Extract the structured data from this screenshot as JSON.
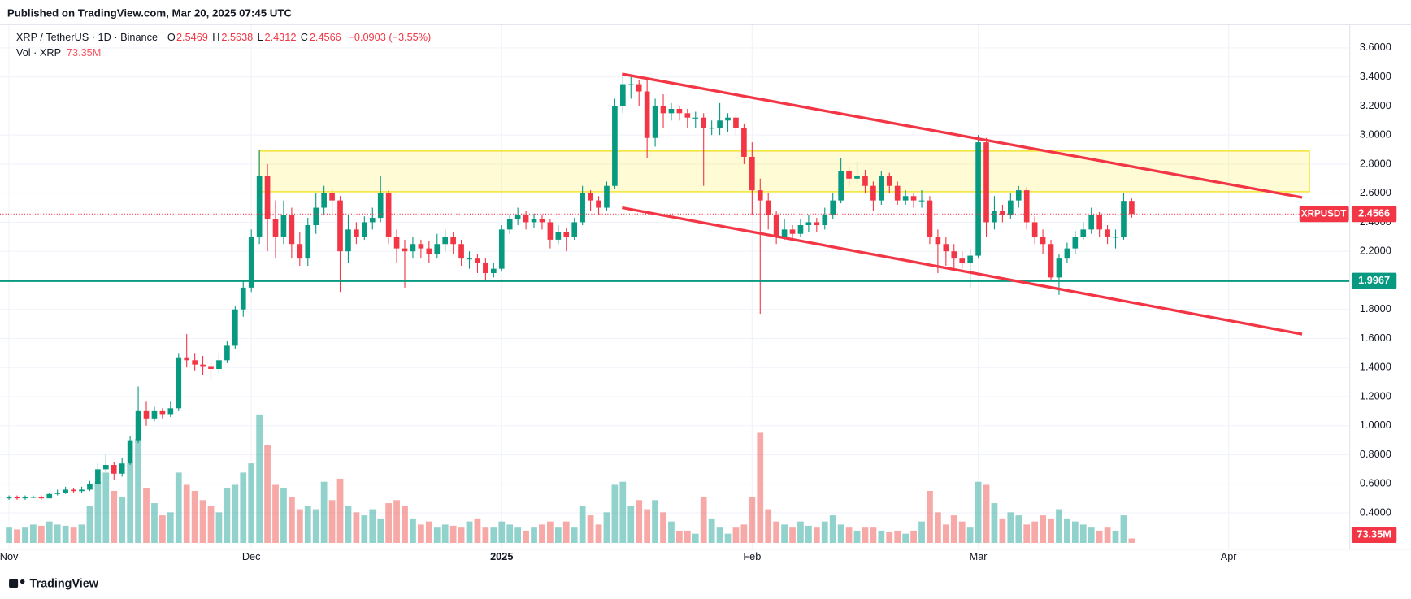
{
  "chart_data": {
    "type": "candlestick",
    "header": "Published on TradingView.com, Mar 20, 2025 07:45 UTC",
    "symbol": "XRP / TetherUS · 1D · Binance",
    "ohlc_letters": [
      "O",
      "H",
      "L",
      "C"
    ],
    "change_label": "−0.0903 (−3.55%)",
    "volume_title": "Vol · XRP",
    "volume_label": "73.35M",
    "ticker": "XRPUSDT",
    "footer": "TradingView",
    "up_color": "#089981",
    "down_color": "#f23645",
    "volume_up_color": "rgba(38,166,154,0.5)",
    "volume_down_color": "rgba(239,83,80,0.5)",
    "xlim": [
      0,
      166
    ],
    "xticks": [
      {
        "value": 0,
        "label": "Nov"
      },
      {
        "value": 30,
        "label": "Dec"
      },
      {
        "value": 61,
        "label": "2025"
      },
      {
        "value": 92,
        "label": "Feb"
      },
      {
        "value": 120,
        "label": "Mar"
      },
      {
        "value": 151,
        "label": "Apr"
      }
    ],
    "ylim": [
      0.15,
      3.76
    ],
    "yticks": [
      {
        "value": 0.4,
        "label": "0.4000"
      },
      {
        "value": 0.6,
        "label": "0.6000"
      },
      {
        "value": 0.8,
        "label": "0.8000"
      },
      {
        "value": 1.0,
        "label": "1.0000"
      },
      {
        "value": 1.2,
        "label": "1.2000"
      },
      {
        "value": 1.4,
        "label": "1.4000"
      },
      {
        "value": 1.6,
        "label": "1.6000"
      },
      {
        "value": 1.8,
        "label": "1.8000"
      },
      {
        "value": 2.0,
        "label": "2.0000"
      },
      {
        "value": 2.2,
        "label": "2.2000"
      },
      {
        "value": 2.4,
        "label": "2.4000"
      },
      {
        "value": 2.6,
        "label": "2.6000"
      },
      {
        "value": 2.8,
        "label": "2.8000"
      },
      {
        "value": 3.0,
        "label": "3.0000"
      },
      {
        "value": 3.2,
        "label": "3.2000"
      },
      {
        "value": 3.4,
        "label": "3.4000"
      },
      {
        "value": 3.6,
        "label": "3.6000"
      }
    ],
    "volume_lim": [
      0,
      3000
    ],
    "grid": true,
    "zone": {
      "x": [
        31,
        161
      ],
      "y": [
        2.61,
        2.89
      ],
      "color": "rgba(255,235,59,0.22)",
      "border": "#f5e642"
    },
    "support": {
      "value": 1.9967,
      "color": "#089981"
    },
    "trendlines": [
      {
        "x": [
          75.9,
          160.1
        ],
        "y": [
          3.42,
          2.57
        ],
        "color": "#f23645"
      },
      {
        "x": [
          75.9,
          160.1
        ],
        "y": [
          2.5,
          1.63
        ],
        "color": "#f23645"
      }
    ],
    "candles": {
      "open": [
        0.5,
        0.51,
        0.5,
        0.51,
        0.51,
        0.5,
        0.53,
        0.54,
        0.56,
        0.55,
        0.56,
        0.6,
        0.7,
        0.73,
        0.67,
        0.74,
        0.9,
        1.1,
        1.05,
        1.1,
        1.08,
        1.12,
        1.47,
        1.45,
        1.42,
        1.41,
        1.39,
        1.45,
        1.55,
        1.8,
        1.95,
        2.3,
        2.72,
        2.42,
        2.3,
        2.45,
        2.25,
        2.15,
        2.38,
        2.5,
        2.6,
        2.55,
        2.2,
        2.35,
        2.3,
        2.4,
        2.43,
        2.6,
        2.3,
        2.22,
        2.2,
        2.25,
        2.22,
        2.18,
        2.25,
        2.3,
        2.25,
        2.15,
        2.15,
        2.12,
        2.05,
        2.08,
        2.35,
        2.42,
        2.45,
        2.4,
        2.42,
        2.4,
        2.28,
        2.33,
        2.3,
        2.4,
        2.6,
        2.55,
        2.5,
        2.65,
        3.2,
        3.35,
        3.35,
        3.3,
        2.98,
        3.2,
        3.15,
        3.18,
        3.15,
        3.12,
        3.12,
        3.05,
        3.05,
        3.1,
        3.12,
        3.05,
        2.85,
        2.62,
        2.55,
        2.45,
        2.3,
        2.35,
        2.32,
        2.38,
        2.4,
        2.38,
        2.45,
        2.55,
        2.75,
        2.7,
        2.72,
        2.65,
        2.55,
        2.72,
        2.65,
        2.55,
        2.58,
        2.55,
        2.55,
        2.3,
        2.25,
        2.2,
        2.15,
        2.12,
        2.17,
        2.95,
        2.4,
        2.48,
        2.45,
        2.55,
        2.62,
        2.4,
        2.3,
        2.25,
        2.02,
        2.15,
        2.22,
        2.3,
        2.35,
        2.45,
        2.35,
        2.3,
        2.3,
        2.5469
      ],
      "high": [
        0.52,
        0.52,
        0.52,
        0.52,
        0.52,
        0.54,
        0.56,
        0.58,
        0.57,
        0.58,
        0.62,
        0.74,
        0.8,
        0.75,
        0.78,
        0.93,
        1.27,
        1.17,
        1.13,
        1.12,
        1.17,
        1.5,
        1.63,
        1.5,
        1.48,
        1.45,
        1.5,
        1.58,
        1.82,
        2.0,
        2.35,
        2.9,
        2.8,
        2.55,
        2.55,
        2.5,
        2.33,
        2.43,
        2.6,
        2.65,
        2.63,
        2.58,
        2.45,
        2.4,
        2.44,
        2.5,
        2.72,
        2.62,
        2.35,
        2.28,
        2.3,
        2.28,
        2.27,
        2.32,
        2.35,
        2.33,
        2.28,
        2.2,
        2.18,
        2.15,
        2.12,
        2.38,
        2.45,
        2.5,
        2.48,
        2.46,
        2.45,
        2.42,
        2.38,
        2.36,
        2.43,
        2.65,
        2.62,
        2.58,
        2.68,
        3.25,
        3.4,
        3.4,
        3.38,
        3.38,
        3.25,
        3.28,
        3.22,
        3.2,
        3.18,
        3.16,
        3.15,
        3.1,
        3.22,
        3.15,
        3.14,
        3.08,
        2.95,
        2.7,
        2.6,
        2.48,
        2.42,
        2.38,
        2.42,
        2.45,
        2.43,
        2.5,
        2.6,
        2.84,
        2.78,
        2.82,
        2.76,
        2.68,
        2.75,
        2.74,
        2.68,
        2.62,
        2.6,
        2.62,
        2.58,
        2.35,
        2.3,
        2.25,
        2.2,
        2.22,
        3.0,
        2.98,
        2.58,
        2.52,
        2.6,
        2.65,
        2.64,
        2.44,
        2.35,
        2.28,
        2.18,
        2.26,
        2.34,
        2.4,
        2.5,
        2.47,
        2.38,
        2.35,
        2.6,
        2.5638
      ],
      "low": [
        0.49,
        0.49,
        0.49,
        0.5,
        0.49,
        0.5,
        0.52,
        0.53,
        0.54,
        0.54,
        0.55,
        0.59,
        0.68,
        0.63,
        0.65,
        0.73,
        0.88,
        1.0,
        1.03,
        1.05,
        1.06,
        1.1,
        1.4,
        1.38,
        1.35,
        1.31,
        1.36,
        1.43,
        1.53,
        1.75,
        1.92,
        2.25,
        2.2,
        2.15,
        2.25,
        2.15,
        2.1,
        2.1,
        2.32,
        2.45,
        2.45,
        1.92,
        2.12,
        2.25,
        2.28,
        2.35,
        2.4,
        2.25,
        2.12,
        1.95,
        2.15,
        2.15,
        2.12,
        2.15,
        2.2,
        2.18,
        2.1,
        2.08,
        2.05,
        2.0,
        2.02,
        2.06,
        2.32,
        2.38,
        2.35,
        2.36,
        2.35,
        2.22,
        2.25,
        2.2,
        2.28,
        2.38,
        2.48,
        2.45,
        2.48,
        2.63,
        3.15,
        3.25,
        3.2,
        2.84,
        2.92,
        3.05,
        3.1,
        3.1,
        3.05,
        3.05,
        2.65,
        3.0,
        3.0,
        3.02,
        3.0,
        2.8,
        2.45,
        1.77,
        2.35,
        2.25,
        2.28,
        2.28,
        2.3,
        2.33,
        2.33,
        2.35,
        2.42,
        2.53,
        2.65,
        2.67,
        2.6,
        2.48,
        2.52,
        2.6,
        2.52,
        2.52,
        2.5,
        2.5,
        2.25,
        2.05,
        2.1,
        2.08,
        2.08,
        1.95,
        2.15,
        2.3,
        2.35,
        2.4,
        2.42,
        2.5,
        2.35,
        2.25,
        2.18,
        2.0,
        1.9,
        2.12,
        2.18,
        2.28,
        2.32,
        2.3,
        2.25,
        2.22,
        2.28,
        2.4312
      ],
      "close": [
        0.51,
        0.5,
        0.51,
        0.51,
        0.5,
        0.53,
        0.54,
        0.56,
        0.55,
        0.56,
        0.6,
        0.7,
        0.73,
        0.67,
        0.74,
        0.9,
        1.1,
        1.05,
        1.1,
        1.08,
        1.12,
        1.47,
        1.45,
        1.42,
        1.41,
        1.39,
        1.45,
        1.55,
        1.8,
        1.95,
        2.3,
        2.72,
        2.42,
        2.3,
        2.45,
        2.25,
        2.15,
        2.38,
        2.5,
        2.6,
        2.55,
        2.2,
        2.35,
        2.3,
        2.4,
        2.43,
        2.6,
        2.3,
        2.22,
        2.2,
        2.25,
        2.22,
        2.18,
        2.25,
        2.3,
        2.25,
        2.15,
        2.15,
        2.12,
        2.05,
        2.08,
        2.35,
        2.42,
        2.45,
        2.4,
        2.42,
        2.4,
        2.28,
        2.33,
        2.3,
        2.4,
        2.6,
        2.55,
        2.5,
        2.65,
        3.2,
        3.35,
        3.35,
        3.3,
        2.98,
        3.2,
        3.15,
        3.18,
        3.15,
        3.12,
        3.12,
        3.05,
        3.05,
        3.1,
        3.12,
        3.05,
        2.85,
        2.62,
        2.55,
        2.45,
        2.3,
        2.35,
        2.32,
        2.38,
        2.4,
        2.38,
        2.45,
        2.55,
        2.75,
        2.7,
        2.72,
        2.65,
        2.55,
        2.72,
        2.65,
        2.55,
        2.58,
        2.55,
        2.55,
        2.3,
        2.25,
        2.2,
        2.15,
        2.12,
        2.17,
        2.95,
        2.4,
        2.48,
        2.45,
        2.55,
        2.62,
        2.4,
        2.3,
        2.25,
        2.02,
        2.15,
        2.22,
        2.3,
        2.35,
        2.45,
        2.35,
        2.3,
        2.3,
        2.5469,
        2.4566
      ],
      "volume": [
        250,
        220,
        250,
        300,
        280,
        350,
        300,
        280,
        250,
        300,
        600,
        1000,
        1150,
        850,
        750,
        1300,
        1700,
        900,
        650,
        450,
        500,
        1150,
        950,
        850,
        700,
        600,
        500,
        900,
        950,
        1150,
        1300,
        2100,
        1600,
        950,
        900,
        750,
        550,
        600,
        550,
        1000,
        700,
        1050,
        600,
        500,
        450,
        550,
        400,
        650,
        700,
        600,
        400,
        300,
        350,
        250,
        300,
        280,
        250,
        350,
        400,
        250,
        250,
        350,
        300,
        250,
        200,
        250,
        300,
        350,
        250,
        350,
        250,
        600,
        450,
        300,
        500,
        950,
        1000,
        600,
        700,
        550,
        700,
        500,
        350,
        200,
        200,
        150,
        750,
        400,
        250,
        150,
        250,
        300,
        750,
        1800,
        550,
        350,
        300,
        250,
        350,
        280,
        250,
        350,
        450,
        300,
        250,
        200,
        250,
        250,
        200,
        180,
        200,
        150,
        200,
        350,
        850,
        500,
        300,
        450,
        350,
        250,
        1000,
        950,
        650,
        400,
        500,
        450,
        300,
        350,
        450,
        400,
        550,
        400,
        350,
        300,
        250,
        200,
        250,
        200,
        450,
        73.35
      ]
    }
  }
}
